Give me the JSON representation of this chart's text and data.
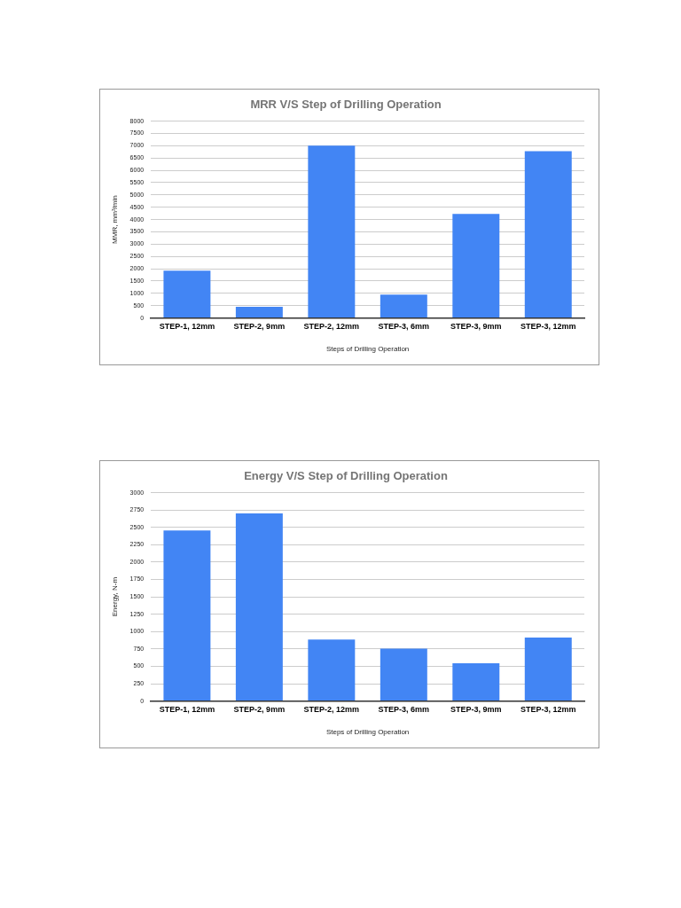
{
  "chart_data": [
    {
      "type": "bar",
      "title": "MRR V/S Step of Drilling Operation",
      "xlabel": "Steps of Drilling Operation",
      "ylabel": "MMR, mm³/min",
      "categories": [
        "STEP-1, 12mm",
        "STEP-2, 9mm",
        "STEP-2, 12mm",
        "STEP-3, 6mm",
        "STEP-3, 9mm",
        "STEP-3, 12mm"
      ],
      "values": [
        1925,
        450,
        7000,
        950,
        4225,
        6775
      ],
      "color": "#4285f4",
      "ylim": [
        0,
        8000
      ],
      "yticks": [
        0,
        500,
        1000,
        1500,
        2000,
        2500,
        3000,
        3500,
        4000,
        4500,
        5000,
        5500,
        6000,
        6500,
        7000,
        7500,
        8000
      ],
      "grid": "y",
      "legend": false
    },
    {
      "type": "bar",
      "title": "Energy V/S Step of Drilling Operation",
      "xlabel": "Steps of Drilling Operation",
      "ylabel": "Energy, N-m",
      "categories": [
        "STEP-1, 12mm",
        "STEP-2, 9mm",
        "STEP-2, 12mm",
        "STEP-3, 6mm",
        "STEP-3, 9mm",
        "STEP-3, 12mm"
      ],
      "values": [
        2455,
        2700,
        885,
        755,
        545,
        915
      ],
      "color": "#4285f4",
      "ylim": [
        0,
        3000
      ],
      "yticks": [
        0,
        250,
        500,
        750,
        1000,
        1250,
        1500,
        1750,
        2000,
        2250,
        2500,
        2750,
        3000
      ],
      "grid": "y",
      "legend": false
    }
  ]
}
